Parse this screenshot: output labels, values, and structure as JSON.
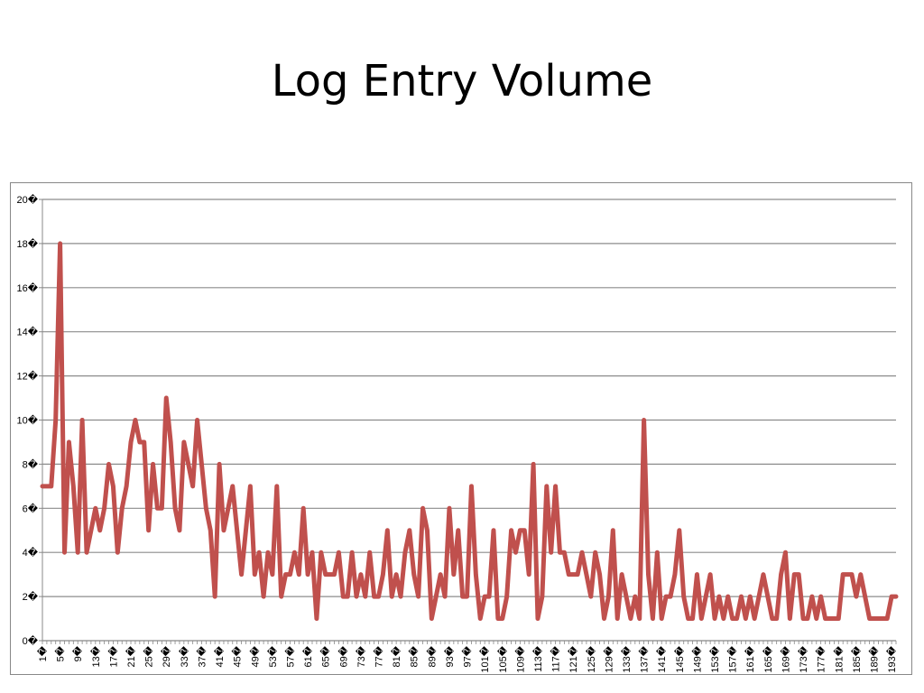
{
  "slide": {
    "title": "Log Entry Volume"
  },
  "chart_data": {
    "type": "line",
    "title": "Log Entry Volume",
    "xlabel": "",
    "ylabel": "",
    "ylim": [
      0,
      20
    ],
    "y_ticks": [
      "0",
      "2",
      "4",
      "6",
      "8",
      "10",
      "12",
      "14",
      "16",
      "18",
      "20"
    ],
    "x_tick_labels": [
      "1",
      "5",
      "9",
      "13",
      "17",
      "21",
      "25",
      "29",
      "33",
      "37",
      "41",
      "45",
      "49",
      "53",
      "57",
      "61",
      "65",
      "69",
      "73",
      "77",
      "81",
      "85",
      "89",
      "93",
      "97",
      "101",
      "105",
      "109",
      "113",
      "117",
      "121",
      "125",
      "129",
      "133",
      "137",
      "141",
      "145",
      "149",
      "153",
      "157",
      "161",
      "165",
      "169",
      "173",
      "177",
      "181",
      "185",
      "189",
      "193"
    ],
    "tick_suffix": "�",
    "grid": true,
    "legend": "none",
    "line_color": "#C0504D",
    "series": [
      {
        "values": [
          7,
          7,
          7,
          10,
          18,
          4,
          9,
          7,
          4,
          10,
          4,
          5,
          6,
          5,
          6,
          8,
          7,
          4,
          6,
          7,
          9,
          10,
          9,
          9,
          5,
          8,
          6,
          6,
          11,
          9,
          6,
          5,
          9,
          8,
          7,
          10,
          8,
          6,
          5,
          2,
          8,
          5,
          6,
          7,
          5,
          3,
          5,
          7,
          3,
          4,
          2,
          4,
          3,
          7,
          2,
          3,
          3,
          4,
          3,
          6,
          3,
          4,
          1,
          4,
          3,
          3,
          3,
          4,
          2,
          2,
          4,
          2,
          3,
          2,
          4,
          2,
          2,
          3,
          5,
          2,
          3,
          2,
          4,
          5,
          3,
          2,
          6,
          5,
          1,
          2,
          3,
          2,
          6,
          3,
          5,
          2,
          2,
          7,
          3,
          1,
          2,
          2,
          5,
          1,
          1,
          2,
          5,
          4,
          5,
          5,
          3,
          8,
          1,
          2,
          7,
          4,
          7,
          4,
          4,
          3,
          3,
          3,
          4,
          3,
          2,
          4,
          3,
          1,
          2,
          5,
          1,
          3,
          2,
          1,
          2,
          1,
          10,
          3,
          1,
          4,
          1,
          2,
          2,
          3,
          5,
          2,
          1,
          1,
          3,
          1,
          2,
          3,
          1,
          2,
          1,
          2,
          1,
          1,
          2,
          1,
          2,
          1,
          2,
          3,
          2,
          1,
          1,
          3,
          4,
          1,
          3,
          3,
          1,
          1,
          2,
          1,
          2,
          1,
          1,
          1,
          1,
          3,
          3,
          3,
          2,
          3,
          2,
          1,
          1,
          1,
          1,
          1,
          2,
          2
        ]
      }
    ]
  }
}
